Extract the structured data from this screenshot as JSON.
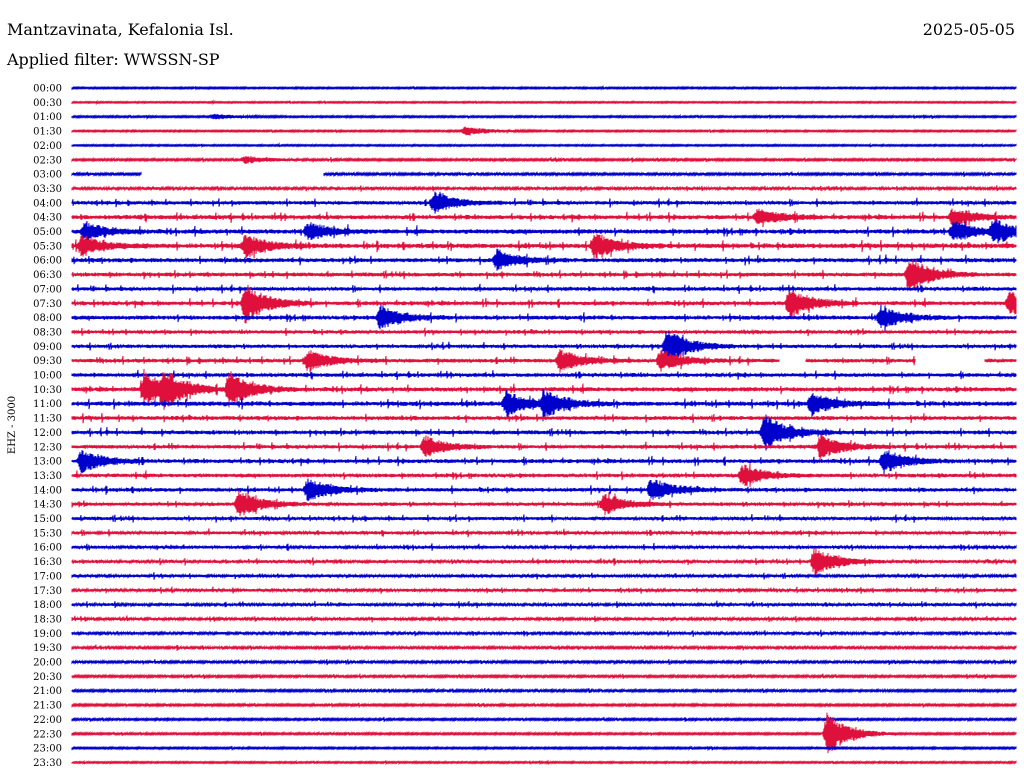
{
  "header": {
    "station": "Mantzavinata, Kefalonia Isl.",
    "date": "2025-05-05",
    "filter": "Applied filter: WWSSN-SP"
  },
  "chart_data": {
    "type": "line",
    "title": "Mantzavinata, Kefalonia Isl.",
    "ylabel": "EHZ - 3000",
    "row_labels": [
      "00:00",
      "00:30",
      "01:00",
      "01:30",
      "02:00",
      "02:30",
      "03:00",
      "03:30",
      "04:00",
      "04:30",
      "05:00",
      "05:30",
      "06:00",
      "06:30",
      "07:00",
      "07:30",
      "08:00",
      "08:30",
      "09:00",
      "09:30",
      "10:00",
      "10:30",
      "11:00",
      "11:30",
      "12:00",
      "12:30",
      "13:00",
      "13:30",
      "14:00",
      "14:30",
      "15:00",
      "15:30",
      "16:00",
      "16:30",
      "17:00",
      "17:30",
      "18:00",
      "18:30",
      "19:00",
      "19:30",
      "20:00",
      "20:30",
      "21:00",
      "21:30",
      "22:00",
      "22:30",
      "23:00",
      "23:30"
    ],
    "row_colors": [
      "#0000cc",
      "#e0103c"
    ],
    "activity_level": [
      0.08,
      0.05,
      0.1,
      0.08,
      0.06,
      0.18,
      0.22,
      0.3,
      0.5,
      0.6,
      0.65,
      0.7,
      0.6,
      0.55,
      0.5,
      0.55,
      0.55,
      0.45,
      0.45,
      0.55,
      0.5,
      0.6,
      0.65,
      0.55,
      0.55,
      0.5,
      0.55,
      0.5,
      0.5,
      0.45,
      0.45,
      0.4,
      0.38,
      0.38,
      0.35,
      0.35,
      0.35,
      0.3,
      0.3,
      0.25,
      0.25,
      0.2,
      0.2,
      0.18,
      0.15,
      0.15,
      0.12,
      0.08
    ],
    "events": [
      {
        "row": "01:00",
        "minute": 4.5,
        "amp": 0.3
      },
      {
        "row": "01:30",
        "minute": 12.5,
        "amp": 0.5
      },
      {
        "row": "02:30",
        "minute": 5.5,
        "amp": 0.4
      },
      {
        "row": "04:00",
        "minute": 11.5,
        "amp": 1.2
      },
      {
        "row": "04:30",
        "minute": 21.8,
        "amp": 1.0
      },
      {
        "row": "04:30",
        "minute": 28,
        "amp": 1.0
      },
      {
        "row": "05:00",
        "minute": 0.4,
        "amp": 1.0
      },
      {
        "row": "05:00",
        "minute": 7.5,
        "amp": 1.0
      },
      {
        "row": "05:00",
        "minute": 28,
        "amp": 1.1
      },
      {
        "row": "05:00",
        "minute": 29.3,
        "amp": 1.3
      },
      {
        "row": "05:30",
        "minute": 0.3,
        "amp": 1.1
      },
      {
        "row": "05:30",
        "minute": 5.5,
        "amp": 1.3
      },
      {
        "row": "05:30",
        "minute": 16.6,
        "amp": 1.4
      },
      {
        "row": "06:00",
        "minute": 13.5,
        "amp": 1.1
      },
      {
        "row": "06:30",
        "minute": 26.6,
        "amp": 2.0
      },
      {
        "row": "07:30",
        "minute": 5.5,
        "amp": 2.2
      },
      {
        "row": "07:30",
        "minute": 22.8,
        "amp": 1.8
      },
      {
        "row": "07:30",
        "minute": 29.8,
        "amp": 1.4
      },
      {
        "row": "08:00",
        "minute": 9.8,
        "amp": 1.4
      },
      {
        "row": "08:00",
        "minute": 25.7,
        "amp": 1.3
      },
      {
        "row": "09:00",
        "minute": 18.9,
        "amp": 2.0
      },
      {
        "row": "09:30",
        "minute": 7.5,
        "amp": 1.2
      },
      {
        "row": "09:30",
        "minute": 15.5,
        "amp": 1.2
      },
      {
        "row": "09:30",
        "minute": 18.7,
        "amp": 1.2
      },
      {
        "row": "10:30",
        "minute": 2.3,
        "amp": 1.8
      },
      {
        "row": "10:30",
        "minute": 2.9,
        "amp": 1.8
      },
      {
        "row": "10:30",
        "minute": 5.0,
        "amp": 2.0
      },
      {
        "row": "11:00",
        "minute": 13.8,
        "amp": 1.4
      },
      {
        "row": "11:00",
        "minute": 15.0,
        "amp": 1.4
      },
      {
        "row": "11:00",
        "minute": 23.5,
        "amp": 1.2
      },
      {
        "row": "12:00",
        "minute": 22.0,
        "amp": 2.0
      },
      {
        "row": "12:30",
        "minute": 11.2,
        "amp": 1.2
      },
      {
        "row": "12:30",
        "minute": 23.8,
        "amp": 1.3
      },
      {
        "row": "13:00",
        "minute": 0.3,
        "amp": 1.3
      },
      {
        "row": "13:00",
        "minute": 25.8,
        "amp": 1.3
      },
      {
        "row": "13:30",
        "minute": 21.3,
        "amp": 1.2
      },
      {
        "row": "14:00",
        "minute": 7.5,
        "amp": 1.3
      },
      {
        "row": "14:00",
        "minute": 18.4,
        "amp": 1.3
      },
      {
        "row": "14:30",
        "minute": 5.3,
        "amp": 1.6
      },
      {
        "row": "14:30",
        "minute": 16.9,
        "amp": 1.2
      },
      {
        "row": "16:30",
        "minute": 23.6,
        "amp": 1.6
      },
      {
        "row": "22:30",
        "minute": 24.0,
        "amp": 2.4
      }
    ],
    "gaps": [
      {
        "row": "03:00",
        "from_minute": 2.2,
        "to_minute": 8.0
      },
      {
        "row": "09:30",
        "from_minute": 22.5,
        "to_minute": 23.3
      },
      {
        "row": "09:30",
        "from_minute": 26.8,
        "to_minute": 29.0
      }
    ]
  }
}
